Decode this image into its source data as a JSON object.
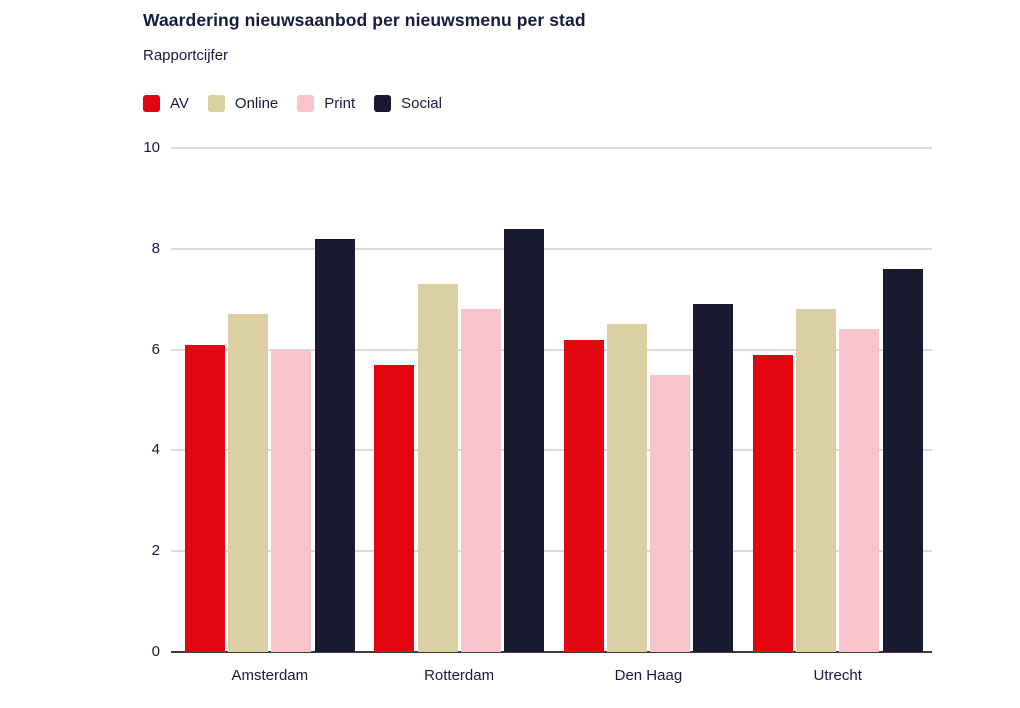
{
  "header": {
    "title": "Waardering nieuwsaanbod per nieuwsmenu per stad",
    "subtitle": "Rapportcijfer"
  },
  "colors": {
    "text": "#1a1a3e",
    "gridline": "#dadada",
    "axis_line": "#3d3d3d",
    "av": "#e2040f",
    "online": "#dbcfa4",
    "print": "#f6c4ca",
    "social": "#191930"
  },
  "legend": [
    {
      "label": "AV",
      "color": "#e2040f"
    },
    {
      "label": "Online",
      "color": "#dbcfa4"
    },
    {
      "label": "Print",
      "color": "#f6c4ca"
    },
    {
      "label": "Social",
      "color": "#191930"
    }
  ],
  "chart_data": {
    "type": "bar",
    "title": "Waardering nieuwsaanbod per nieuwsmenu per stad",
    "subtitle": "Rapportcijfer",
    "xlabel": "",
    "ylabel": "Rapportcijfer",
    "categories": [
      "Amsterdam",
      "Rotterdam",
      "Den Haag",
      "Utrecht"
    ],
    "series": [
      {
        "name": "AV",
        "color": "#e2040f",
        "values": [
          6.1,
          5.7,
          6.2,
          5.9
        ]
      },
      {
        "name": "Online",
        "color": "#dbcfa4",
        "values": [
          6.7,
          7.3,
          6.5,
          6.8
        ]
      },
      {
        "name": "Print",
        "color": "#f6c4ca",
        "values": [
          6.0,
          6.8,
          5.5,
          6.4
        ]
      },
      {
        "name": "Social",
        "color": "#191930",
        "values": [
          8.2,
          8.4,
          6.9,
          7.6
        ]
      }
    ],
    "ylim": [
      0,
      10
    ],
    "yticks": [
      0,
      2,
      4,
      6,
      8,
      10
    ],
    "grid": true,
    "legend_position": "top-left"
  }
}
